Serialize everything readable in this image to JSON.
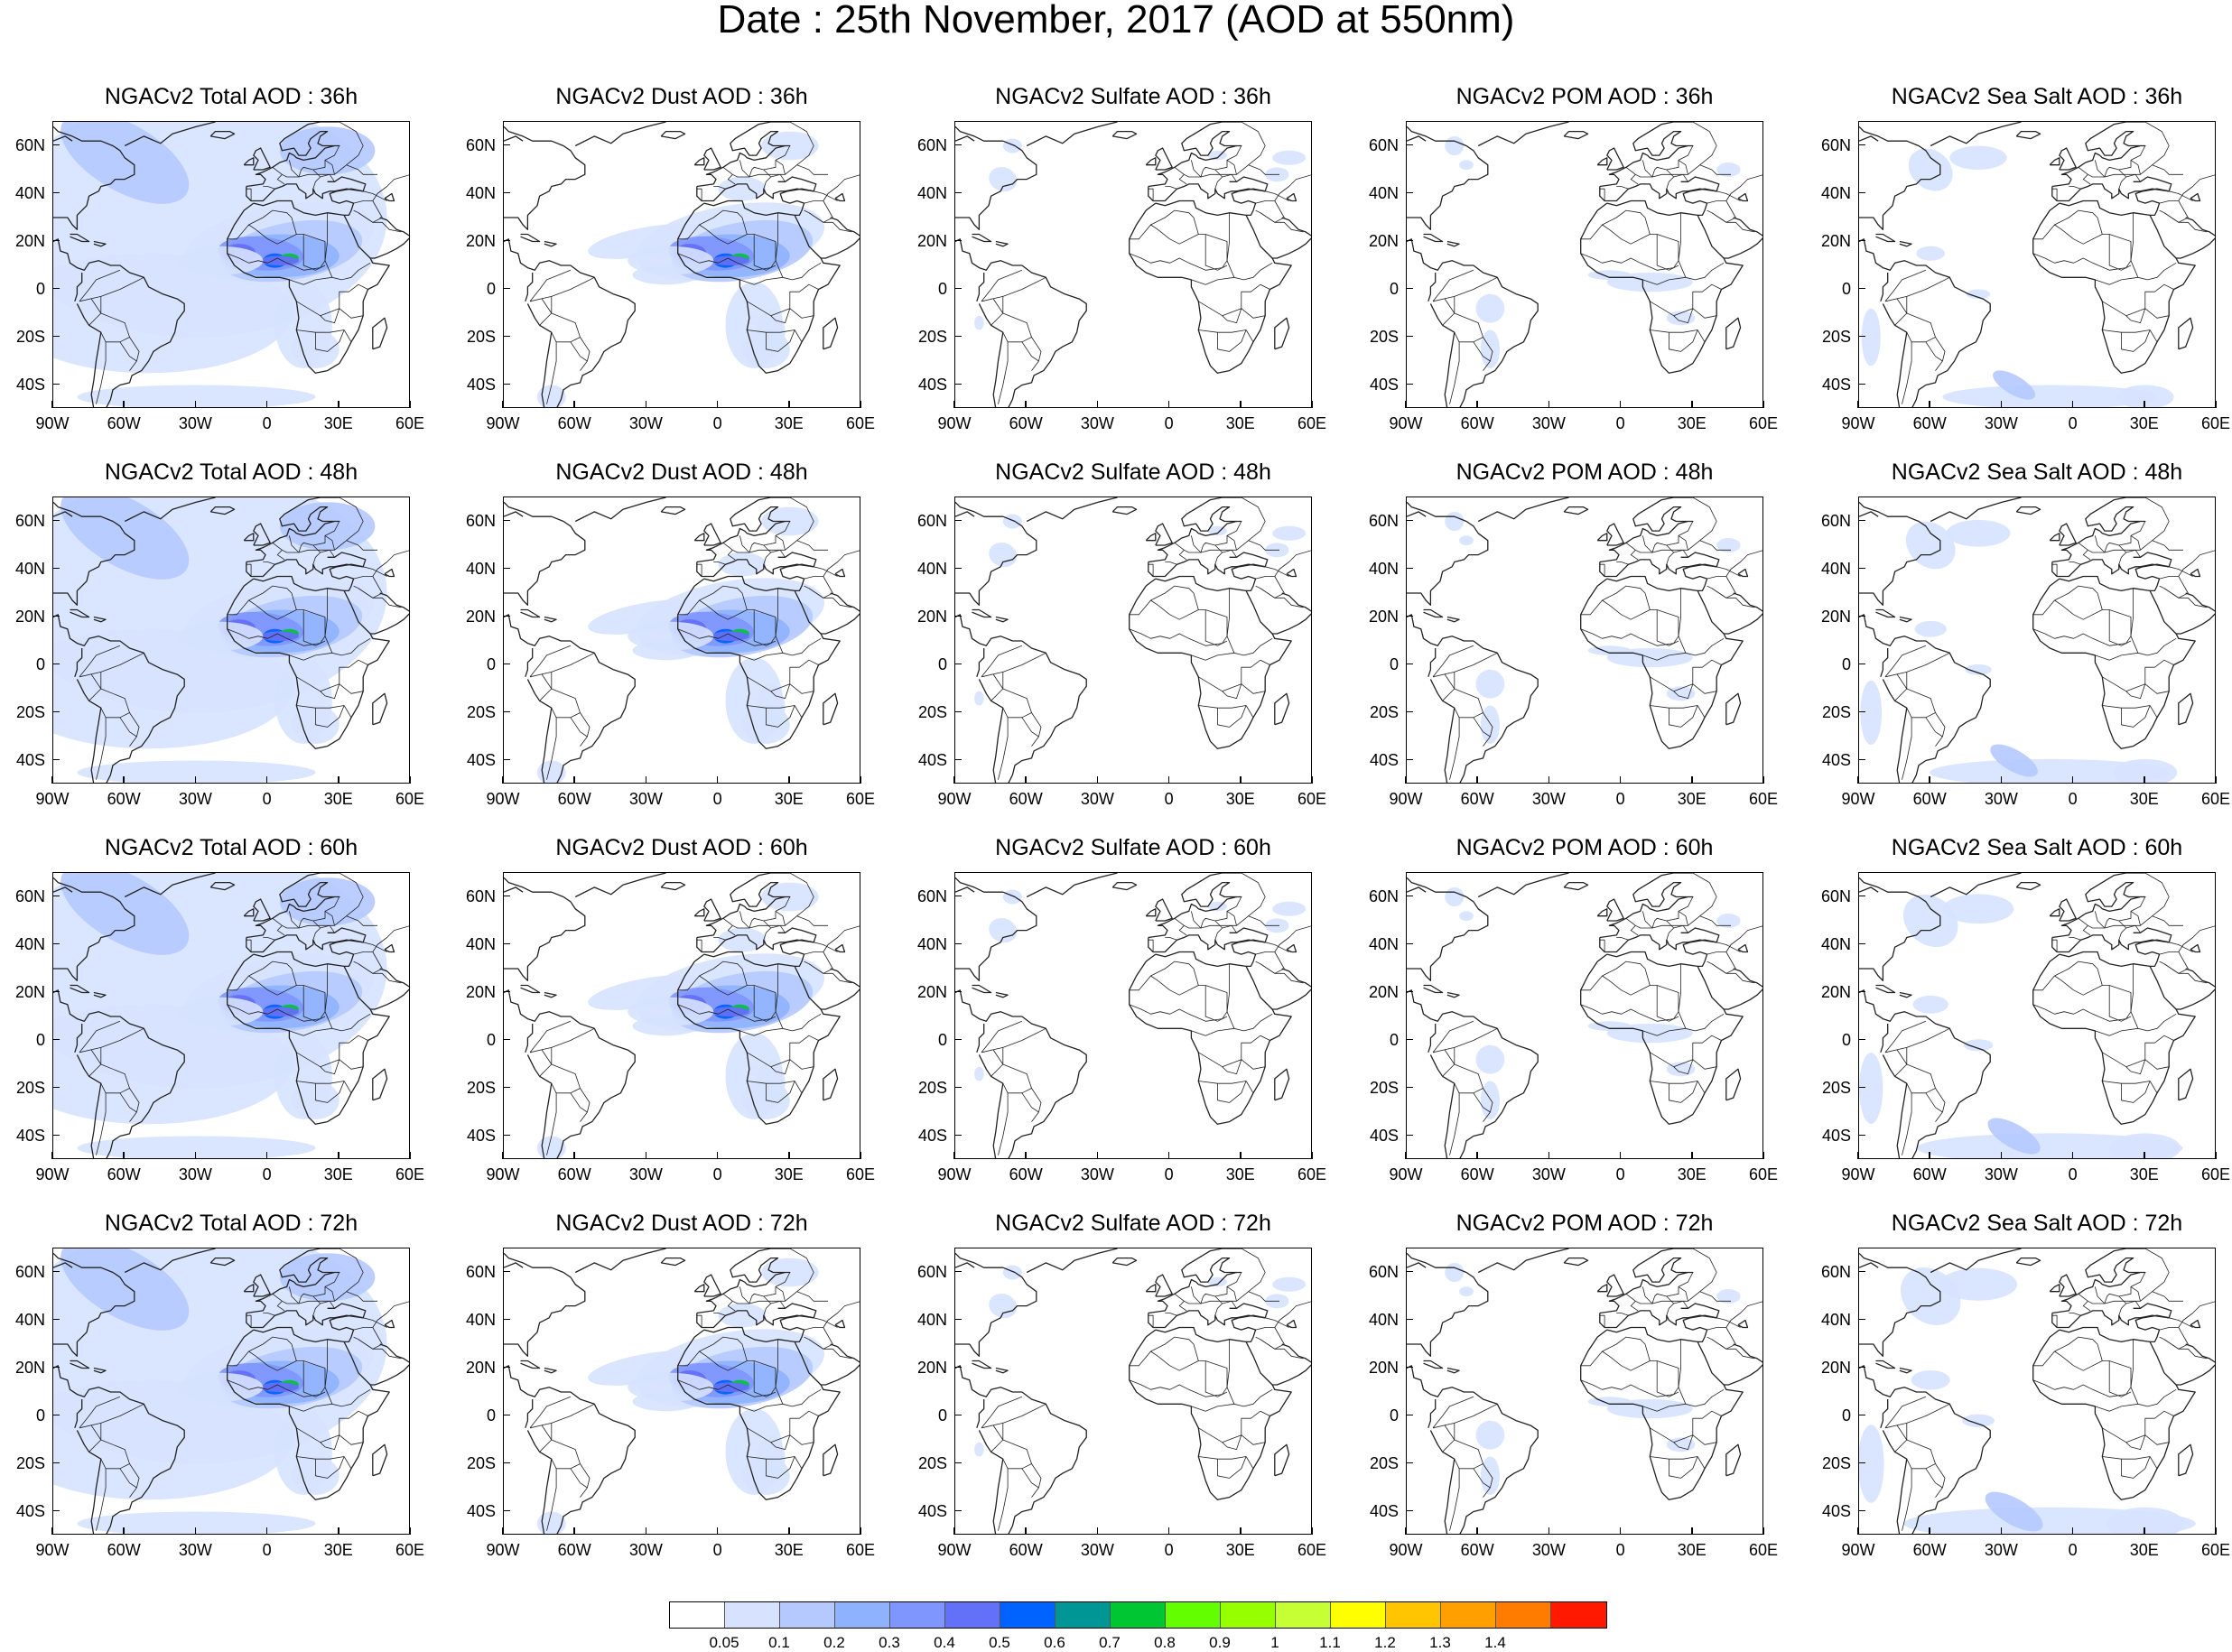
{
  "title": "Date : 25th November, 2017 (AOD at 550nm)",
  "panel_titles": [
    [
      "NGACv2 Total AOD : 36h",
      "NGACv2 Dust AOD : 36h",
      "NGACv2 Sulfate AOD : 36h",
      "NGACv2 POM AOD : 36h",
      "NGACv2 Sea Salt AOD : 36h"
    ],
    [
      "NGACv2 Total AOD : 48h",
      "NGACv2 Dust AOD : 48h",
      "NGACv2 Sulfate AOD : 48h",
      "NGACv2 POM AOD : 48h",
      "NGACv2 Sea Salt AOD : 48h"
    ],
    [
      "NGACv2 Total AOD : 60h",
      "NGACv2 Dust AOD : 60h",
      "NGACv2 Sulfate AOD : 60h",
      "NGACv2 POM AOD : 60h",
      "NGACv2 Sea Salt AOD : 60h"
    ],
    [
      "NGACv2 Total AOD : 72h",
      "NGACv2 Dust AOD : 72h",
      "NGACv2 Sulfate AOD : 72h",
      "NGACv2 POM AOD : 72h",
      "NGACv2 Sea Salt  AOD : 72h"
    ]
  ],
  "axes": {
    "lon_ticks": [
      "90W",
      "60W",
      "30W",
      "0",
      "30E",
      "60E"
    ],
    "lat_ticks": [
      "60N",
      "40N",
      "20N",
      "0",
      "20S",
      "40S"
    ],
    "lon_range": [
      -90,
      60
    ],
    "lat_range": [
      -50,
      70
    ]
  },
  "colorbar": {
    "colors": [
      "#ffffff",
      "#d6e2ff",
      "#b5c9ff",
      "#8fb2ff",
      "#7f96ff",
      "#6370f8",
      "#0063ff",
      "#009696",
      "#00c633",
      "#63ff00",
      "#96ff00",
      "#c6ff33",
      "#ffff00",
      "#ffc600",
      "#ffa000",
      "#ff7c00",
      "#ff1900"
    ],
    "labels": [
      "0.05",
      "0.1",
      "0.2",
      "0.3",
      "0.4",
      "0.5",
      "0.6",
      "0.7",
      "0.8",
      "0.9",
      "1",
      "1.1",
      "1.2",
      "1.3",
      "1.4"
    ]
  }
}
